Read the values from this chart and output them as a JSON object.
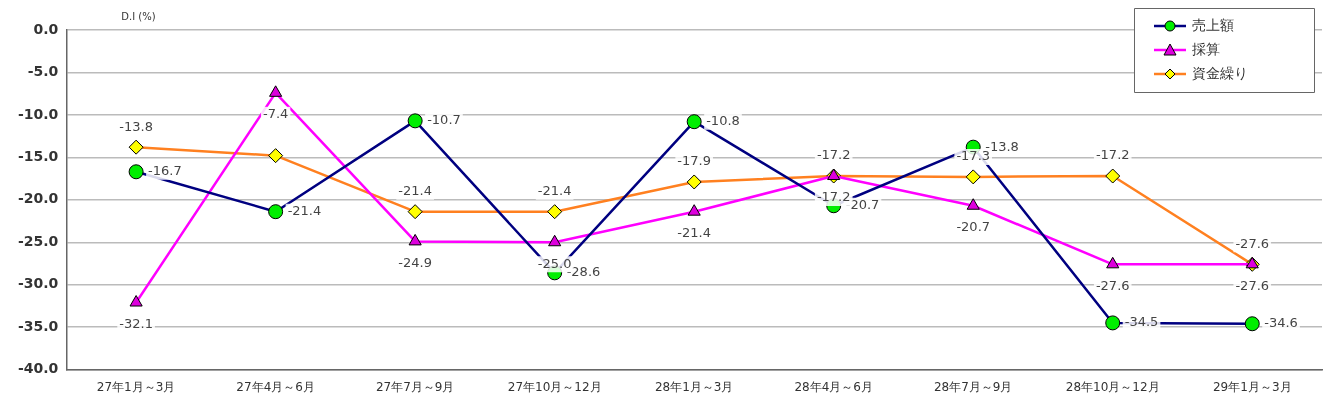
{
  "chart_data": {
    "type": "line",
    "ylabel": "D.I (%)",
    "categories": [
      "27年1月～3月",
      "27年4月～6月",
      "27年7月～9月",
      "27年10月～12月",
      "28年1月～3月",
      "28年4月～6月",
      "28年7月～9月",
      "28年10月～12月",
      "29年1月～3月"
    ],
    "series": [
      {
        "name": "売上額",
        "color": "#000080",
        "marker": "circle",
        "values": [
          -16.7,
          -21.4,
          -10.7,
          -28.6,
          -10.8,
          -20.7,
          -13.8,
          -34.5,
          -34.6
        ],
        "value_labels": [
          "-16.7",
          "-21.4",
          "-10.7",
          "-28.6",
          "-10.8",
          "-20.7",
          "-13.8",
          "-34.5",
          "-34.6"
        ]
      },
      {
        "name": "採算",
        "color": "#ff00ff",
        "marker": "triangle",
        "values": [
          -32.1,
          -7.4,
          -24.9,
          -25.0,
          -21.4,
          -17.2,
          -20.7,
          -27.6,
          -27.6
        ],
        "value_labels": [
          "-32.1",
          "-7.4",
          "-24.9",
          "-25.0",
          "-21.4",
          "-17.2",
          "-20.7",
          "-27.6",
          "-27.6"
        ]
      },
      {
        "name": "資金繰り",
        "color": "#ff8020",
        "marker": "diamond",
        "values": [
          -13.8,
          -14.8,
          -21.4,
          -21.4,
          -17.9,
          -17.2,
          -17.3,
          -17.2,
          -27.6
        ],
        "value_labels": [
          "-13.8",
          null,
          "-21.4",
          "-21.4",
          "-17.9",
          "-17.2",
          "-17.3",
          "-17.2",
          "-27.6"
        ]
      }
    ],
    "ylim": [
      -40,
      0
    ],
    "yticks": [
      {
        "value": -40,
        "label": "-40.0"
      },
      {
        "value": -35,
        "label": "-35.0"
      },
      {
        "value": -30,
        "label": "-30.0"
      },
      {
        "value": -25,
        "label": "-25.0"
      },
      {
        "value": -20,
        "label": "-20.0"
      },
      {
        "value": -15,
        "label": "-15.0"
      },
      {
        "value": -10,
        "label": "-10.0"
      },
      {
        "value": -5,
        "label": "-5.0"
      },
      {
        "value": 0,
        "label": "0.0"
      }
    ],
    "grid": "y",
    "legend": "top right"
  }
}
